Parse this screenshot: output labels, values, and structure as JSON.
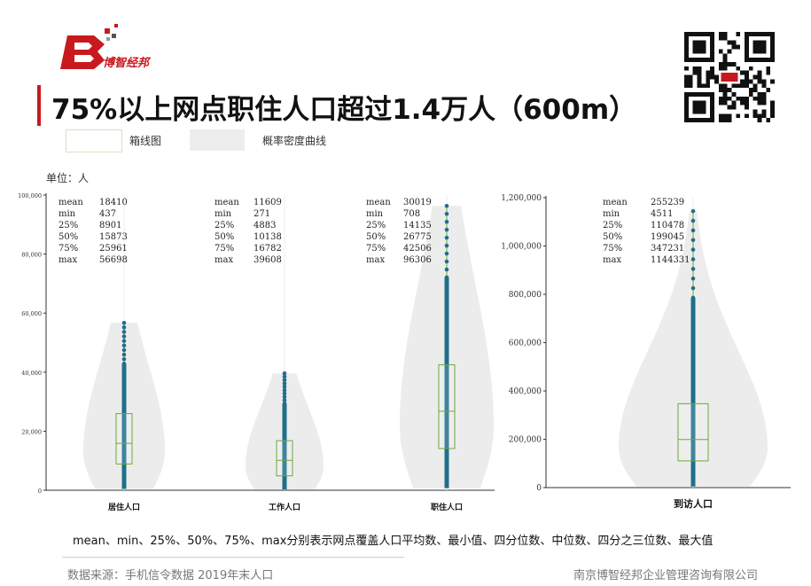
{
  "header": {
    "brand": "博智经邦",
    "title": "75%以上网点职住人口超过1.4万人（600m）"
  },
  "legend": {
    "box_label": "箱线图",
    "kde_label": "概率密度曲线"
  },
  "unit_label": "单位：人",
  "stat_names": [
    "mean",
    "min",
    "25%",
    "50%",
    "75%",
    "max"
  ],
  "colors": {
    "accent": "#c8191e",
    "points": "#1f6f8b",
    "box": "#6aaa3a",
    "violin": "#ececec"
  },
  "chart_data": [
    {
      "type": "violin",
      "ylim": [
        0,
        100000
      ],
      "yticks": [
        "0",
        "20,000",
        "40,000",
        "60,000",
        "80,000",
        "100,000"
      ],
      "yticks_values": [
        0,
        20000,
        40000,
        60000,
        80000,
        100000
      ],
      "series": [
        {
          "name": "居住人口",
          "stats": {
            "mean": 18410,
            "min": 437,
            "q25": 8901,
            "q50": 15873,
            "q75": 25961,
            "max": 56698
          },
          "stat_text": [
            "18410",
            "437",
            "8901",
            "15873",
            "25961",
            "56698"
          ]
        },
        {
          "name": "工作人口",
          "stats": {
            "mean": 11609,
            "min": 271,
            "q25": 4883,
            "q50": 10138,
            "q75": 16782,
            "max": 39608
          },
          "stat_text": [
            "11609",
            "271",
            "4883",
            "10138",
            "16782",
            "39608"
          ]
        },
        {
          "name": "职住人口",
          "stats": {
            "mean": 30019,
            "min": 708,
            "q25": 14135,
            "q50": 26775,
            "q75": 42506,
            "max": 96306
          },
          "stat_text": [
            "30019",
            "708",
            "14135",
            "26775",
            "42506",
            "96306"
          ]
        }
      ]
    },
    {
      "type": "violin",
      "ylim": [
        0,
        1200000
      ],
      "yticks": [
        "0",
        "200,000",
        "400,000",
        "600,000",
        "800,000",
        "1,000,000",
        "1,200,000"
      ],
      "yticks_values": [
        0,
        200000,
        400000,
        600000,
        800000,
        1000000,
        1200000
      ],
      "series": [
        {
          "name": "到访人口",
          "stats": {
            "mean": 255239,
            "min": 4511,
            "q25": 110478,
            "q50": 199045,
            "q75": 347231,
            "max": 1144331
          },
          "stat_text": [
            "255239",
            "4511",
            "110478",
            "199045",
            "347231",
            "1144331"
          ]
        }
      ]
    }
  ],
  "footer": {
    "note": "mean、min、25%、50%、75%、max分别表示网点覆盖人口平均数、最小值、四分位数、中位数、四分之三位数、最大值",
    "source": "数据来源：手机信令数据 2019年末人口",
    "company": "南京博智经邦企业管理咨询有限公司"
  }
}
